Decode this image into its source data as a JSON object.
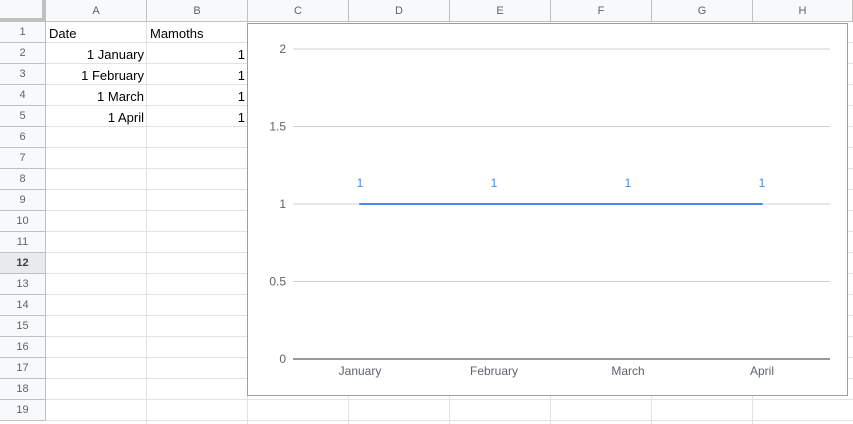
{
  "columns": [
    "A",
    "B",
    "C",
    "D",
    "E",
    "F",
    "G",
    "H"
  ],
  "rows": [
    "1",
    "2",
    "3",
    "4",
    "5",
    "6",
    "7",
    "8",
    "9",
    "10",
    "11",
    "12",
    "13",
    "14",
    "15",
    "16",
    "17",
    "18",
    "19"
  ],
  "selected_row": "12",
  "table": {
    "header": {
      "date": "Date",
      "mamoths": "Mamoths"
    },
    "data": [
      {
        "date": "1 January",
        "mamoths": "1"
      },
      {
        "date": "1 February",
        "mamoths": "1"
      },
      {
        "date": "1 March",
        "mamoths": "1"
      },
      {
        "date": "1 April",
        "mamoths": "1"
      }
    ]
  },
  "chart_data": {
    "type": "line",
    "categories": [
      "January",
      "February",
      "March",
      "April"
    ],
    "series": [
      {
        "values": [
          1,
          1,
          1,
          1
        ]
      }
    ],
    "data_labels": [
      "1",
      "1",
      "1",
      "1"
    ],
    "y_ticks": [
      "0",
      "0.5",
      "1",
      "1.5",
      "2"
    ],
    "ylim": [
      0,
      2
    ],
    "grid": true,
    "colors": {
      "line": "#4a86e8",
      "label": "#4a86e8",
      "grid": "#d0d0d0",
      "axis": "#333333"
    }
  }
}
